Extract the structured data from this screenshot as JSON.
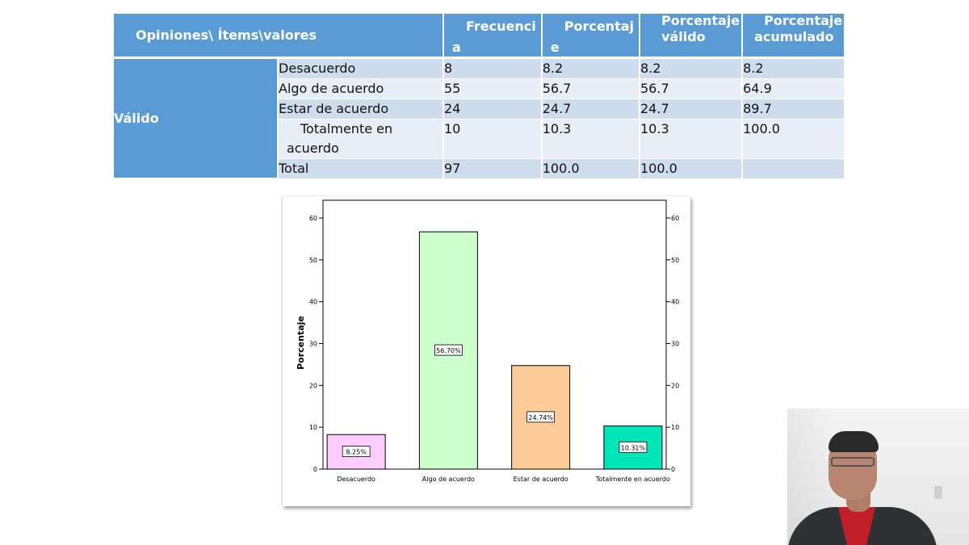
{
  "table": {
    "headers": {
      "label": "Opiniones\\ Ítems\\valores",
      "freq_line1": "Frecuenci",
      "freq_line2": "a",
      "pct_line1": "Porcentaj",
      "pct_line2": "e",
      "valid_line1": "Porcentaje",
      "valid_line2": "válido",
      "cum_line1": "Porcentaje",
      "cum_line2": "acumulado"
    },
    "group_label": "Válido",
    "rows": [
      {
        "category": "Desacuerdo",
        "frecuencia": "8",
        "porcentaje": "8.2",
        "valido": "8.2",
        "acumulado": "8.2"
      },
      {
        "category": "Algo de acuerdo",
        "frecuencia": "55",
        "porcentaje": "56.7",
        "valido": "56.7",
        "acumulado": "64.9"
      },
      {
        "category": "Estar de acuerdo",
        "frecuencia": "24",
        "porcentaje": "24.7",
        "valido": "24.7",
        "acumulado": "89.7"
      },
      {
        "category_line1": "Totalmente en",
        "category_line2": "acuerdo",
        "frecuencia": "10",
        "porcentaje": "10.3",
        "valido": "10.3",
        "acumulado": "100.0"
      },
      {
        "category": "Total",
        "frecuencia": "97",
        "porcentaje": "100.0",
        "valido": "100.0",
        "acumulado": ""
      }
    ]
  },
  "chart_data": {
    "type": "bar",
    "categories": [
      "Desacuerdo",
      "Algo de acuerdo",
      "Estar de acuerdo",
      "Totalmente en acuerdo"
    ],
    "values": [
      8.25,
      56.7,
      24.74,
      10.31
    ],
    "data_labels": [
      "8.25%",
      "56.70%",
      "24.74%",
      "10.31%"
    ],
    "colors": [
      "#ffccff",
      "#ccffcc",
      "#ffcc99",
      "#00e6b8"
    ],
    "ylabel": "Porcentaje",
    "ylim": [
      0,
      60
    ],
    "yticks": [
      0,
      10,
      20,
      30,
      40,
      50,
      60
    ],
    "right_axis_ticks": true,
    "grid": false
  },
  "colors": {
    "header_blue": "#5b9bd5",
    "row_shade_dark": "#cfdcee",
    "row_shade_light": "#e8eef7",
    "shirt_red": "#c11f2a"
  }
}
